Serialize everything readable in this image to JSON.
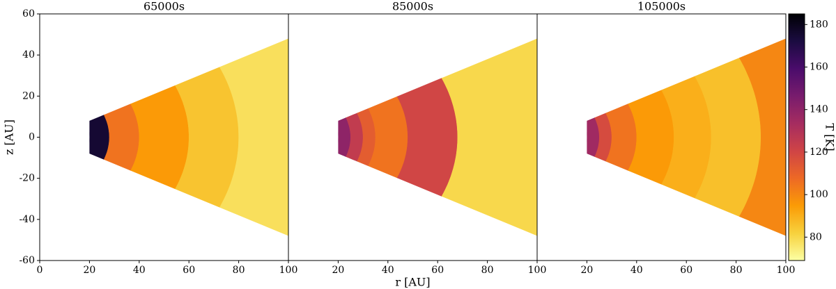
{
  "chart_data": [
    {
      "type": "heatmap",
      "title": "65000s",
      "ylabel": "z [AU]",
      "xlim": [
        0,
        100
      ],
      "xticks": [
        0,
        20,
        40,
        60,
        80,
        100
      ],
      "ylim": [
        -60,
        60
      ],
      "yticks": [
        -60,
        -40,
        -20,
        0,
        20,
        40,
        60
      ],
      "wedge": {
        "r": [
          20,
          100
        ],
        "z_inner": 8,
        "z_outer": 48
      },
      "radius_edges": [
        20,
        28,
        40,
        60,
        80,
        112
      ],
      "values": [
        175,
        105,
        95,
        85,
        78
      ]
    },
    {
      "type": "heatmap",
      "title": "85000s",
      "xlabel": "r [AU]",
      "xlim": [
        0,
        100
      ],
      "xticks": [
        20,
        40,
        60,
        80,
        100
      ],
      "ylim": [
        -60,
        60
      ],
      "wedge": {
        "r": [
          20,
          100
        ],
        "z_inner": 8,
        "z_outer": 48
      },
      "radius_edges": [
        20,
        25,
        30,
        35,
        48,
        68,
        112
      ],
      "values": [
        140,
        125,
        112,
        105,
        120,
        80
      ]
    },
    {
      "type": "heatmap",
      "title": "105000s",
      "xlim": [
        0,
        100
      ],
      "xticks": [
        20,
        40,
        60,
        80,
        100
      ],
      "ylim": [
        -60,
        60
      ],
      "wedge": {
        "r": [
          20,
          100
        ],
        "z_inner": 8,
        "z_outer": 48
      },
      "radius_edges": [
        20,
        25,
        30,
        40,
        55,
        70,
        90,
        112
      ],
      "values": [
        135,
        118,
        105,
        95,
        90,
        86,
        100
      ]
    }
  ],
  "colorbar": {
    "label": "T [K]",
    "lim": [
      69,
      185
    ],
    "ticks": [
      80,
      100,
      120,
      140,
      160,
      180
    ],
    "colormap": [
      "#fcffa4",
      "#f7d13d",
      "#fb9b06",
      "#ed6925",
      "#cf4446",
      "#a52c60",
      "#781c6d",
      "#4a0c6b",
      "#1b0c41",
      "#000004"
    ]
  }
}
